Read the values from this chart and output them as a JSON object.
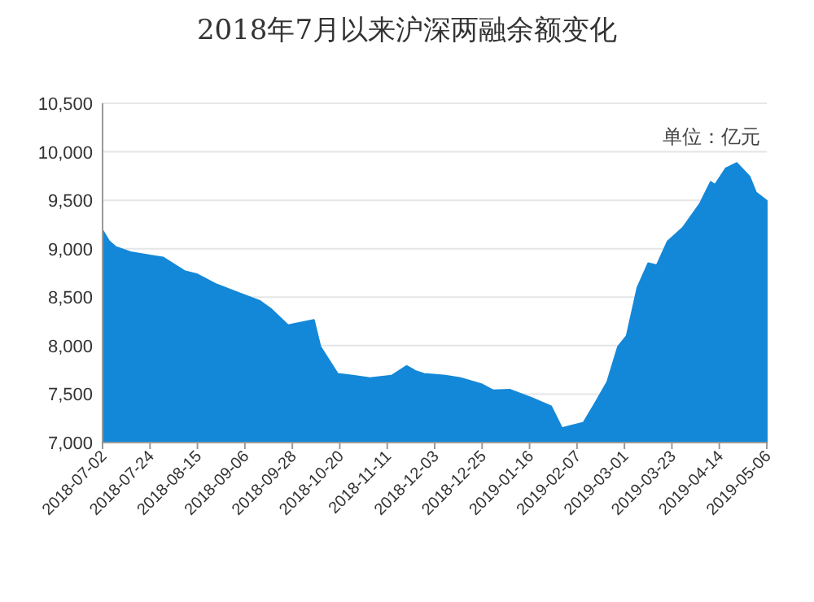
{
  "chart_data": {
    "type": "area",
    "title": "2018年7月以来沪深两融余额变化",
    "annotations": [
      "单位：亿元"
    ],
    "x": [
      "2018-07-02",
      "2018-07-05",
      "2018-07-08",
      "2018-07-15",
      "2018-07-24",
      "2018-07-30",
      "2018-08-09",
      "2018-08-15",
      "2018-08-24",
      "2018-09-03",
      "2018-09-13",
      "2018-09-18",
      "2018-09-26",
      "2018-10-08",
      "2018-10-11",
      "2018-10-19",
      "2018-10-26",
      "2018-11-03",
      "2018-11-13",
      "2018-11-20",
      "2018-11-24",
      "2018-11-28",
      "2018-12-08",
      "2018-12-15",
      "2018-12-25",
      "2018-12-30",
      "2019-01-07",
      "2019-01-17",
      "2019-01-26",
      "2019-01-31",
      "2019-02-10",
      "2019-02-16",
      "2019-02-21",
      "2019-02-26",
      "2019-03-02",
      "2019-03-07",
      "2019-03-12",
      "2019-03-16",
      "2019-03-21",
      "2019-03-28",
      "2019-04-05",
      "2019-04-10",
      "2019-04-12",
      "2019-04-17",
      "2019-04-22",
      "2019-04-28",
      "2019-05-01",
      "2019-05-06"
    ],
    "series": [
      {
        "color": "#1488d8",
        "values": [
          9190,
          9080,
          9020,
          8965,
          8930,
          8910,
          8770,
          8735,
          8630,
          8545,
          8460,
          8380,
          8210,
          8265,
          7990,
          7710,
          7690,
          7665,
          7690,
          7790,
          7740,
          7710,
          7690,
          7665,
          7600,
          7540,
          7545,
          7460,
          7375,
          7150,
          7205,
          7430,
          7625,
          7990,
          8100,
          8600,
          8850,
          8830,
          9075,
          9215,
          9465,
          9690,
          9660,
          9830,
          9885,
          9745,
          9580,
          9495
        ]
      }
    ],
    "xlim": [
      "2018-07-02",
      "2019-05-06"
    ],
    "xticks": [
      "2018-07-02",
      "2018-07-24",
      "2018-08-15",
      "2018-09-06",
      "2018-09-28",
      "2018-10-20",
      "2018-11-11",
      "2018-12-03",
      "2018-12-25",
      "2019-01-16",
      "2019-02-07",
      "2019-03-01",
      "2019-03-23",
      "2019-04-14",
      "2019-05-06"
    ],
    "ylim": [
      7000,
      10500
    ],
    "yticks": [
      {
        "value": 7000,
        "label": "7,000"
      },
      {
        "value": 7500,
        "label": "7,500"
      },
      {
        "value": 8000,
        "label": "8,000"
      },
      {
        "value": 8500,
        "label": "8,500"
      },
      {
        "value": 9000,
        "label": "9,000"
      },
      {
        "value": 9500,
        "label": "9,500"
      },
      {
        "value": 10000,
        "label": "10,000"
      },
      {
        "value": 10500,
        "label": "10,500"
      }
    ],
    "grid": "y"
  }
}
